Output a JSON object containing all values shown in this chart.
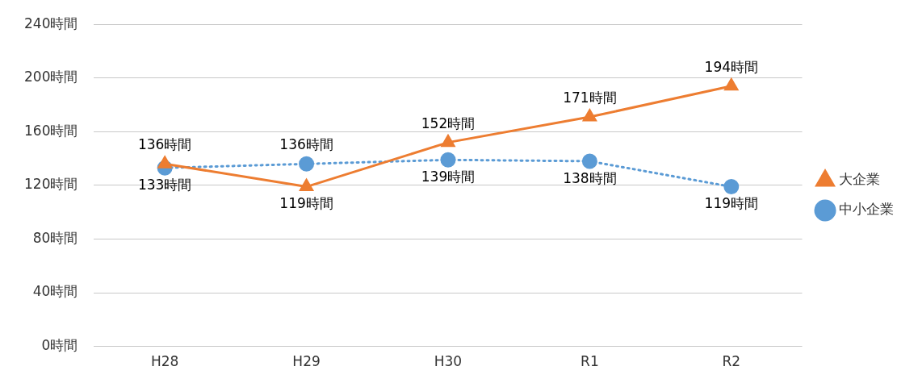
{
  "chart_data": {
    "type": "line",
    "categories": [
      "H28",
      "H29",
      "H30",
      "R1",
      "R2"
    ],
    "series": [
      {
        "name": "中小企業",
        "color": "#5b9bd5",
        "values": [
          133,
          136,
          139,
          138,
          119
        ],
        "marker": "circle",
        "line_style": "dotted",
        "value_labels": [
          "133時間",
          "136時間",
          "139時間",
          "138時間",
          "119時間"
        ]
      },
      {
        "name": "大企業",
        "color": "#ed7d31",
        "values": [
          136,
          119,
          152,
          171,
          194
        ],
        "marker": "triangle",
        "line_style": "solid",
        "value_labels": [
          "136時間",
          "119時間",
          "152時間",
          "171時間",
          "194時間"
        ]
      }
    ],
    "ylim": [
      0,
      240
    ],
    "yticks": [
      {
        "value": 0,
        "label": "0時間"
      },
      {
        "value": 40,
        "label": "40時間"
      },
      {
        "value": 80,
        "label": "80時間"
      },
      {
        "value": 120,
        "label": "120時間"
      },
      {
        "value": 160,
        "label": "160時間"
      },
      {
        "value": 200,
        "label": "200時間"
      },
      {
        "value": 240,
        "label": "240時間"
      }
    ],
    "grid": "y",
    "legend": "right"
  }
}
